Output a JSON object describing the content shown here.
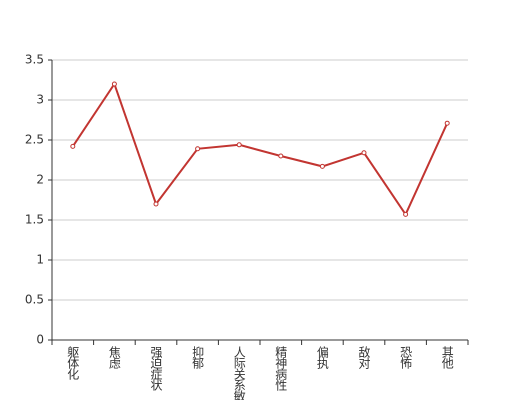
{
  "chart_data": {
    "type": "line",
    "categories": [
      "躯体化",
      "焦虑",
      "强迫症状",
      "抑郁",
      "人际关系敏感",
      "精神病性",
      "偏执",
      "敌对",
      "恐怖",
      "其他"
    ],
    "series": [
      {
        "color": "#c23531",
        "values": [
          2.42,
          3.2,
          1.7,
          2.39,
          2.44,
          2.3,
          2.17,
          2.34,
          1.57,
          2.71
        ]
      }
    ],
    "ylim": [
      0,
      3.5
    ],
    "yticks": [
      0,
      0.5,
      1,
      1.5,
      2,
      2.5,
      3,
      3.5
    ],
    "grid": true
  }
}
